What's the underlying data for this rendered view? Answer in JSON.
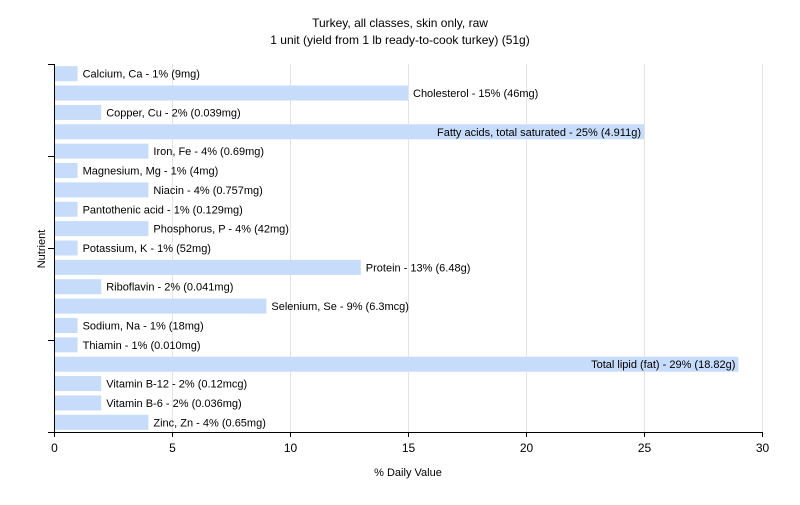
{
  "chart_data": {
    "type": "bar",
    "orientation": "horizontal",
    "title": "Turkey, all classes, skin only, raw",
    "subtitle": "1 unit (yield from 1 lb ready-to-cook turkey) (51g)",
    "xlabel": "% Daily Value",
    "ylabel": "Nutrient",
    "xlim": [
      0,
      30
    ],
    "xticks": [
      "0",
      "5",
      "10",
      "15",
      "20",
      "25",
      "30"
    ],
    "grid": "vertical",
    "bar_color": "#c6dcfa",
    "categories": [
      "Calcium, Ca",
      "Cholesterol",
      "Copper, Cu",
      "Fatty acids, total saturated",
      "Iron, Fe",
      "Magnesium, Mg",
      "Niacin",
      "Pantothenic acid",
      "Phosphorus, P",
      "Potassium, K",
      "Protein",
      "Riboflavin",
      "Selenium, Se",
      "Sodium, Na",
      "Thiamin",
      "Total lipid (fat)",
      "Vitamin B-12",
      "Vitamin B-6",
      "Zinc, Zn"
    ],
    "values": [
      1,
      15,
      2,
      25,
      4,
      1,
      4,
      1,
      4,
      1,
      13,
      2,
      9,
      1,
      1,
      29,
      2,
      2,
      4
    ],
    "labels": [
      "Calcium, Ca - 1% (9mg)",
      "Cholesterol - 15% (46mg)",
      "Copper, Cu - 2% (0.039mg)",
      "Fatty acids, total saturated - 25% (4.911g)",
      "Iron, Fe - 4% (0.69mg)",
      "Magnesium, Mg - 1% (4mg)",
      "Niacin - 4% (0.757mg)",
      "Pantothenic acid - 1% (0.129mg)",
      "Phosphorus, P - 4% (42mg)",
      "Potassium, K - 1% (52mg)",
      "Protein - 13% (6.48g)",
      "Riboflavin - 2% (0.041mg)",
      "Selenium, Se - 9% (6.3mcg)",
      "Sodium, Na - 1% (18mg)",
      "Thiamin - 1% (0.010mg)",
      "Total lipid (fat) - 29% (18.82g)",
      "Vitamin B-12 - 2% (0.12mcg)",
      "Vitamin B-6 - 2% (0.036mg)",
      "Zinc, Zn - 4% (0.65mg)"
    ]
  }
}
